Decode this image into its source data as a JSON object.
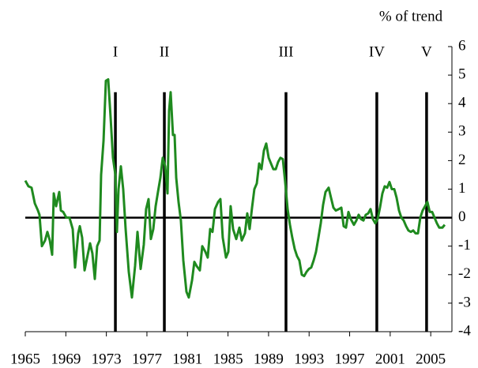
{
  "chart_data": {
    "type": "line",
    "axis_title": "% of trend",
    "xlim": [
      1965,
      2007.09
    ],
    "xticks": [
      1965,
      1969,
      1973,
      1977,
      1981,
      1985,
      1989,
      1993,
      1997,
      2001,
      2005
    ],
    "ylim": [
      -4,
      6
    ],
    "yticks": [
      -4,
      -3,
      -2,
      -1,
      0,
      1,
      2,
      3,
      4,
      5,
      6
    ],
    "event_lines": [
      {
        "label": "I",
        "x": 1973.89,
        "top": 4.4
      },
      {
        "label": "II",
        "x": 1978.72,
        "top": 4.4
      },
      {
        "label": "III",
        "x": 1990.72,
        "top": 4.4
      },
      {
        "label": "IV",
        "x": 1999.68,
        "top": 4.4
      },
      {
        "label": "V",
        "x": 2004.59,
        "top": 4.4
      }
    ],
    "x": [
      1965.0,
      1965.31,
      1965.62,
      1965.94,
      1966.25,
      1966.4,
      1966.64,
      1966.95,
      1967.18,
      1967.42,
      1967.65,
      1967.81,
      1968.04,
      1968.35,
      1968.51,
      1968.74,
      1969.05,
      1969.36,
      1969.68,
      1969.91,
      1970.22,
      1970.38,
      1970.61,
      1970.85,
      1971.16,
      1971.39,
      1971.62,
      1971.86,
      1972.09,
      1972.33,
      1972.48,
      1972.72,
      1972.95,
      1973.18,
      1973.42,
      1973.65,
      1973.89,
      1974.04,
      1974.2,
      1974.43,
      1974.66,
      1974.9,
      1975.21,
      1975.52,
      1975.83,
      1976.07,
      1976.38,
      1976.69,
      1976.92,
      1977.16,
      1977.39,
      1977.63,
      1977.86,
      1978.09,
      1978.33,
      1978.56,
      1978.8,
      1979.03,
      1979.19,
      1979.34,
      1979.57,
      1979.73,
      1979.89,
      1980.12,
      1980.35,
      1980.59,
      1980.9,
      1981.13,
      1981.45,
      1981.68,
      1981.91,
      1982.22,
      1982.46,
      1982.77,
      1983.0,
      1983.24,
      1983.47,
      1983.71,
      1984.02,
      1984.25,
      1984.48,
      1984.8,
      1985.03,
      1985.26,
      1985.5,
      1985.81,
      1986.12,
      1986.36,
      1986.67,
      1986.9,
      1987.13,
      1987.37,
      1987.6,
      1987.84,
      1988.07,
      1988.3,
      1988.54,
      1988.77,
      1989.01,
      1989.24,
      1989.47,
      1989.71,
      1989.94,
      1990.17,
      1990.41,
      1990.64,
      1990.88,
      1991.11,
      1991.34,
      1991.58,
      1991.81,
      1992.04,
      1992.28,
      1992.51,
      1992.75,
      1992.98,
      1993.21,
      1993.45,
      1993.68,
      1993.92,
      1994.15,
      1994.38,
      1994.62,
      1994.93,
      1995.16,
      1995.4,
      1995.63,
      1995.94,
      1996.18,
      1996.41,
      1996.64,
      1996.88,
      1997.11,
      1997.42,
      1997.66,
      1997.89,
      1998.12,
      1998.36,
      1998.59,
      1998.83,
      1999.06,
      1999.29,
      1999.53,
      1999.76,
      1999.99,
      2000.23,
      2000.46,
      2000.7,
      2000.93,
      2001.16,
      2001.4,
      2001.63,
      2001.87,
      2002.1,
      2002.33,
      2002.57,
      2002.8,
      2003.03,
      2003.27,
      2003.5,
      2003.74,
      2003.97,
      2004.2,
      2004.44,
      2004.67,
      2004.9,
      2005.14,
      2005.37,
      2005.61,
      2005.84,
      2006.15,
      2006.38
    ],
    "series": [
      {
        "color": "#1f8a1f",
        "values": [
          1.3,
          1.1,
          1.05,
          0.5,
          0.25,
          0.1,
          -1.0,
          -0.8,
          -0.5,
          -0.8,
          -1.3,
          0.85,
          0.4,
          0.9,
          0.25,
          0.2,
          0,
          0,
          -0.4,
          -1.75,
          -0.55,
          -0.3,
          -0.7,
          -1.85,
          -1.3,
          -0.9,
          -1.25,
          -2.15,
          -1.0,
          -0.8,
          1.5,
          2.7,
          4.8,
          4.85,
          3.5,
          2.1,
          1.5,
          -0.5,
          1.0,
          1.8,
          1.0,
          -0.4,
          -1.9,
          -2.8,
          -1.7,
          -0.5,
          -1.8,
          -0.95,
          0.3,
          0.65,
          -0.75,
          -0.4,
          0.4,
          0.9,
          1.4,
          2.1,
          1.8,
          0.85,
          3.75,
          4.4,
          2.9,
          2.9,
          1.4,
          0.55,
          -0.1,
          -1.5,
          -2.6,
          -2.8,
          -2.2,
          -1.55,
          -1.7,
          -1.85,
          -1.0,
          -1.2,
          -1.4,
          -0.4,
          -0.5,
          0.3,
          0.55,
          0.65,
          -0.7,
          -1.4,
          -1.2,
          0.4,
          -0.4,
          -0.75,
          -0.35,
          -0.8,
          -0.55,
          0.15,
          -0.4,
          0.35,
          1.0,
          1.2,
          1.9,
          1.7,
          2.35,
          2.6,
          2.1,
          1.9,
          1.7,
          1.7,
          1.95,
          2.1,
          2.05,
          1.25,
          0.3,
          -0.25,
          -0.7,
          -1.1,
          -1.35,
          -1.5,
          -2.0,
          -2.05,
          -1.9,
          -1.8,
          -1.75,
          -1.5,
          -1.2,
          -0.7,
          -0.2,
          0.45,
          0.9,
          1.05,
          0.7,
          0.35,
          0.25,
          0.3,
          0.35,
          -0.3,
          -0.35,
          0.2,
          -0.05,
          -0.25,
          -0.1,
          0.1,
          -0.05,
          -0.1,
          0.1,
          0.15,
          0.3,
          -0.05,
          -0.2,
          -0.05,
          0.35,
          0.85,
          1.1,
          1.05,
          1.25,
          1.0,
          1.0,
          0.7,
          0.25,
          0,
          -0.1,
          -0.3,
          -0.45,
          -0.5,
          -0.45,
          -0.55,
          -0.55,
          0,
          0.25,
          0.4,
          0.55,
          0.2,
          0.2,
          0,
          -0.2,
          -0.35,
          -0.35,
          -0.25
        ]
      }
    ]
  }
}
